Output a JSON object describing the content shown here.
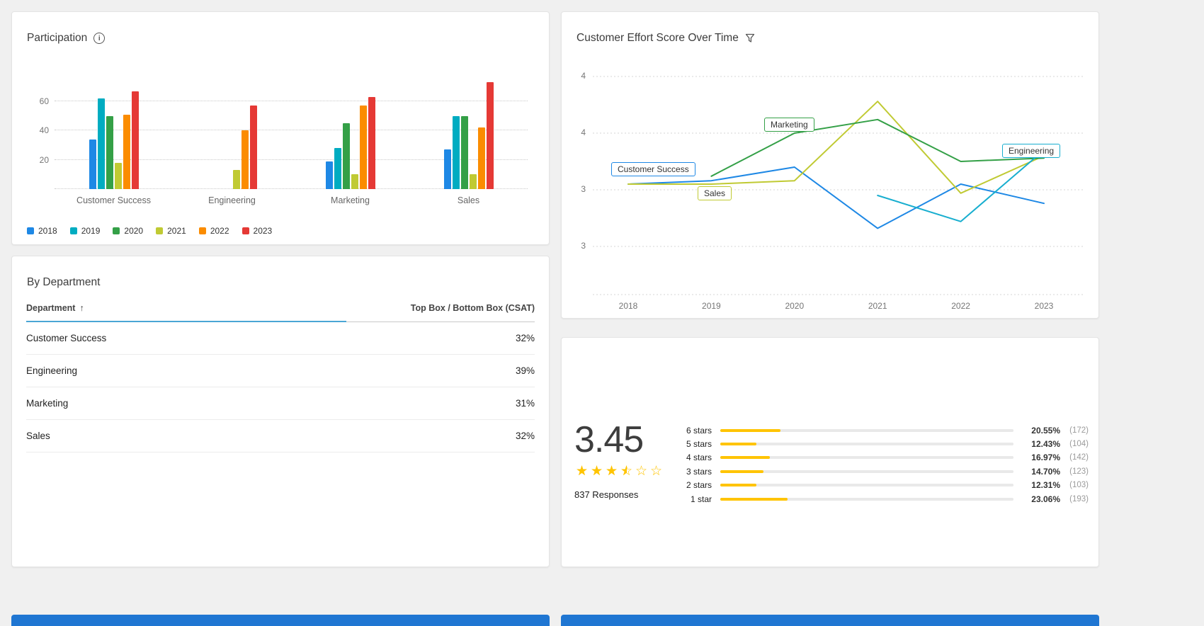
{
  "colors": {
    "background": "#f0f0f0",
    "card_bg": "#ffffff",
    "sort_underline": "#4AA6D5",
    "bottom_strip": "#1F76D2",
    "star_yellow": "#FFC400",
    "dist_fill": "#FFC400"
  },
  "participation": {
    "title": "Participation"
  },
  "ces": {
    "title": "Customer Effort Score Over Time"
  },
  "by_department": {
    "title": "By Department",
    "header": {
      "department": "Department",
      "sort_icon": "↑",
      "csat": "Top Box / Bottom Box (CSAT)"
    },
    "rows": [
      {
        "department": "Customer Success",
        "csat": "32%"
      },
      {
        "department": "Engineering",
        "csat": "39%"
      },
      {
        "department": "Marketing",
        "csat": "31%"
      },
      {
        "department": "Sales",
        "csat": "32%"
      }
    ]
  },
  "rating": {
    "score": "3.45",
    "stars_value": 3.45,
    "stars_total": 6,
    "responses": "837 Responses",
    "distribution": [
      {
        "label": "6 stars",
        "pct": 20.55,
        "pct_label": "20.55%",
        "count_label": "(172)"
      },
      {
        "label": "5 stars",
        "pct": 12.43,
        "pct_label": "12.43%",
        "count_label": "(104)"
      },
      {
        "label": "4 stars",
        "pct": 16.97,
        "pct_label": "16.97%",
        "count_label": "(142)"
      },
      {
        "label": "3 stars",
        "pct": 14.7,
        "pct_label": "14.70%",
        "count_label": "(123)"
      },
      {
        "label": "2 stars",
        "pct": 12.31,
        "pct_label": "12.31%",
        "count_label": "(103)"
      },
      {
        "label": "1 star",
        "pct": 23.06,
        "pct_label": "23.06%",
        "count_label": "(193)"
      }
    ]
  },
  "chart_data": [
    {
      "type": "bar",
      "title": "Participation",
      "categories": [
        "Customer Success",
        "Engineering",
        "Marketing",
        "Sales"
      ],
      "series": [
        {
          "name": "2018",
          "color": "#1E88E5",
          "values": [
            34,
            0,
            19,
            27
          ]
        },
        {
          "name": "2019",
          "color": "#00ACC1",
          "values": [
            62,
            0,
            28,
            50
          ]
        },
        {
          "name": "2020",
          "color": "#34A047",
          "values": [
            50,
            0,
            45,
            50
          ]
        },
        {
          "name": "2021",
          "color": "#C0CA33",
          "values": [
            18,
            13,
            10,
            10
          ]
        },
        {
          "name": "2022",
          "color": "#FB8C00",
          "values": [
            51,
            40,
            57,
            42
          ]
        },
        {
          "name": "2023",
          "color": "#E53935",
          "values": [
            67,
            57,
            63,
            73
          ]
        }
      ],
      "xlabel": "",
      "ylabel": "",
      "ylim": [
        0,
        75
      ],
      "yticks": [
        0,
        20,
        40,
        60
      ],
      "grid": "dotted-horizontal",
      "legend_position": "bottom-left"
    },
    {
      "type": "line",
      "title": "Customer Effort Score Over Time",
      "x": [
        "2018",
        "2019",
        "2020",
        "2021",
        "2022",
        "2023"
      ],
      "ylim": [
        2.4,
        4.1
      ],
      "yticks": [
        {
          "value": 4.0,
          "label": "4"
        },
        {
          "value": 3.5,
          "label": "4"
        },
        {
          "value": 3.0,
          "label": "3"
        },
        {
          "value": 2.5,
          "label": "3"
        }
      ],
      "grid": "dotted-horizontal",
      "legend_position": "inline-labels",
      "series": [
        {
          "name": "Customer Success",
          "color": "#1E88E5",
          "values": [
            3.05,
            3.08,
            3.2,
            2.66,
            3.05,
            2.88
          ],
          "label_pos": {
            "x": 70,
            "y": 212
          }
        },
        {
          "name": "Sales",
          "color": "#C0CA33",
          "values": [
            3.05,
            3.05,
            3.08,
            3.78,
            2.97,
            3.3
          ],
          "label_pos": {
            "x": 192,
            "y": 246
          }
        },
        {
          "name": "Marketing",
          "color": "#34A047",
          "values": [
            null,
            3.12,
            3.5,
            3.62,
            3.25,
            3.28
          ],
          "label_pos": {
            "x": 286,
            "y": 149
          }
        },
        {
          "name": "Engineering",
          "color": "#18AECF",
          "values": [
            null,
            null,
            null,
            2.95,
            2.72,
            3.35
          ],
          "label_pos": {
            "x": 622,
            "y": 186
          }
        }
      ]
    }
  ]
}
